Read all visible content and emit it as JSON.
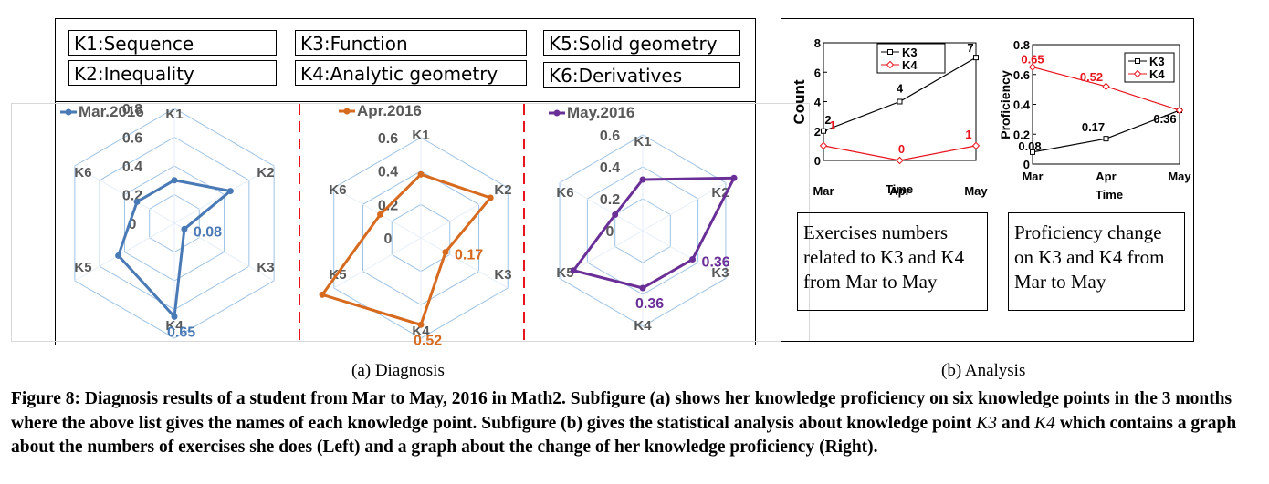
{
  "knowledge_list": {
    "k1": "K1:Sequence",
    "k2": "K2:Inequality",
    "k3": "K3:Function",
    "k4": "K4:Analytic geometry",
    "k5": "K5:Solid geometry",
    "k6": "K6:Derivatives"
  },
  "subcaptions": {
    "a": "(a) Diagnosis",
    "b": "(b) Analysis"
  },
  "notes": {
    "left": "Exercises numbers related to K3 and K4 from Mar to May",
    "right": "Proficiency  change on  K3 and K4 from Mar to May"
  },
  "caption": {
    "label": "Figure 8:",
    "text_1": "Diagnosis results of a student from Mar to May, 2016 in Math2. Subfigure (a) shows her knowledge proficiency on six knowledge points in the 3 months where the above list gives the names of each knowledge point. Subfigure (b) gives the statistical analysis about knowledge point ",
    "k3": "K3",
    "text_2": " and ",
    "k4": "K4",
    "text_3": " which contains a graph about the numbers of exercises she does (Left) and a graph about the change of her knowledge proficiency (Right)."
  },
  "chart_data": [
    {
      "type": "radar",
      "legend": "Mar.2016",
      "color": "#4a7ab5",
      "axes": [
        "K1",
        "K2",
        "K3",
        "K4",
        "K5",
        "K6"
      ],
      "values": [
        0.3,
        0.45,
        0.08,
        0.65,
        0.45,
        0.3
      ],
      "rings": [
        0,
        0.2,
        0.4,
        0.6,
        0.8
      ],
      "ring_labels": [
        "0",
        "0.2",
        "0.4",
        "0.6",
        "0.8"
      ],
      "annotations": [
        {
          "axis": "K3",
          "text": "0.08"
        },
        {
          "axis": "K4",
          "text": "0.65"
        }
      ]
    },
    {
      "type": "radar",
      "legend": "Apr.2016",
      "color": "#d66a1f",
      "axes": [
        "K1",
        "K2",
        "K3",
        "K4",
        "K5",
        "K6"
      ],
      "values": [
        0.38,
        0.48,
        0.17,
        0.52,
        0.68,
        0.28
      ],
      "rings": [
        0,
        0.2,
        0.4,
        0.6
      ],
      "ring_labels": [
        "0",
        "0.2",
        "0.4",
        "0.6"
      ],
      "annotations": [
        {
          "axis": "K3",
          "text": "0.17"
        },
        {
          "axis": "K4",
          "text": "0.52"
        }
      ]
    },
    {
      "type": "radar",
      "legend": "May.2016",
      "color": "#6a2f97",
      "axes": [
        "K1",
        "K2",
        "K3",
        "K4",
        "K5",
        "K6"
      ],
      "values": [
        0.32,
        0.66,
        0.36,
        0.36,
        0.5,
        0.2
      ],
      "rings": [
        0,
        0.2,
        0.4,
        0.6
      ],
      "ring_labels": [
        "0",
        "0.2",
        "0.4",
        "0.6"
      ],
      "annotations": [
        {
          "axis": "K3",
          "text": "0.36"
        },
        {
          "axis": "K4",
          "text": "0.36"
        }
      ]
    },
    {
      "type": "line",
      "x": [
        "Mar",
        "Apr",
        "May"
      ],
      "xlabel": "Time",
      "ylabel": "Count",
      "ylim": [
        0,
        8
      ],
      "yticks": [
        0,
        2,
        4,
        6,
        8
      ],
      "legend": "top",
      "series": [
        {
          "name": "K3",
          "color": "#000000",
          "marker": "square",
          "values": [
            2,
            4,
            7
          ],
          "labels": [
            "2",
            "4",
            "7"
          ]
        },
        {
          "name": "K4",
          "color": "#e8141d",
          "marker": "diamond",
          "values": [
            1,
            0,
            1
          ],
          "labels": [
            "1",
            "0",
            "1"
          ]
        }
      ]
    },
    {
      "type": "line",
      "x": [
        "Mar",
        "Apr",
        "May"
      ],
      "xlabel": "Time",
      "ylabel": "Proficiency",
      "ylim": [
        0,
        0.8
      ],
      "yticks": [
        0,
        0.2,
        0.4,
        0.6,
        0.8
      ],
      "ytick_labels": [
        "0",
        "0.2",
        "0.4",
        "0.6",
        "0.8"
      ],
      "legend": "top-right",
      "series": [
        {
          "name": "K3",
          "color": "#000000",
          "marker": "square",
          "values": [
            0.08,
            0.17,
            0.36
          ],
          "labels": [
            "0.08",
            "0.17",
            "0.36"
          ]
        },
        {
          "name": "K4",
          "color": "#e8141d",
          "marker": "diamond",
          "values": [
            0.65,
            0.52,
            0.36
          ],
          "labels": [
            "0.65",
            "0.52",
            ""
          ]
        }
      ]
    }
  ]
}
